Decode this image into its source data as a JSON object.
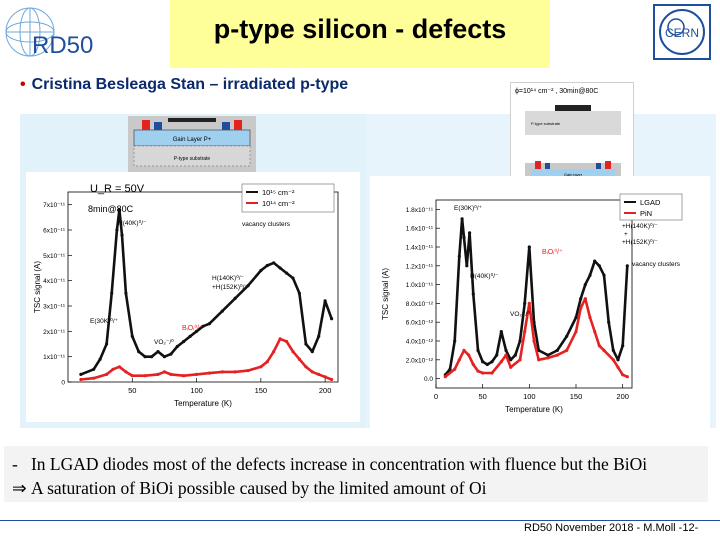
{
  "slide": {
    "title": "p-type silicon - defects",
    "logo_left_text": "RD50",
    "logo_right_text": "CERN",
    "headline": "Cristina Besleaga  Stan – irradiated p-type",
    "bullet_1_dash": "-",
    "bullet_1": "In LGAD diodes most of the defects increase in concentration with fluence but the BiOi",
    "bullet_2_arrow": "⇒",
    "bullet_2": "A saturation of BiOi possible caused by the limited amount of Oi",
    "footer": "RD50 November 2018 - M.Moll -12-"
  },
  "colors": {
    "black_series": "#111111",
    "red_series": "#e52222",
    "title_bg": "#ffff99",
    "accent_blue": "#1f4e9c",
    "bullet_red": "#cc0000"
  },
  "left_device": {
    "gain_layer": "Gain Layer P+",
    "substrate": "P-type substrate"
  },
  "right_inset": {
    "caption": "ϕ=10¹⁴ cm⁻² , 30min@80C",
    "label_1": "P-type substrate",
    "label_2": "Gain layer"
  },
  "chart_data": [
    {
      "type": "line",
      "xlabel": "Temperature (K)",
      "ylabel": "TSC signal (A)",
      "xlim": [
        0,
        210
      ],
      "ylim": [
        0,
        7.5e-11
      ],
      "xticks": [
        "50",
        "100",
        "150",
        "200"
      ],
      "xtick_values": [
        50,
        100,
        150,
        200
      ],
      "yticks": [
        "0",
        "1x10⁻¹¹",
        "2x10⁻¹¹",
        "3x10⁻¹¹",
        "4x10⁻¹¹",
        "5x10⁻¹¹",
        "6x10⁻¹¹",
        "7x10⁻¹¹"
      ],
      "ytick_values": [
        0,
        1e-11,
        2e-11,
        3e-11,
        4e-11,
        5e-11,
        6e-11,
        7e-11
      ],
      "legend": [
        "10¹⁵ cm⁻²",
        "10¹⁴ cm⁻²"
      ],
      "legend_position": "top-right",
      "conditions": [
        "U_R = 50V",
        "8min@80C"
      ],
      "annotations": [
        "H(40K)⁰/⁻",
        "vacancy clusters",
        "H(140K)⁰/⁻",
        "+H(152K)⁰/⁻",
        "E(30K)⁰/⁺",
        "VO₂⁻/⁰",
        "BᵢOᵢ⁰/⁺"
      ],
      "series": [
        {
          "name": "10¹⁵ cm⁻²",
          "color": "#111111",
          "x": [
            10,
            20,
            25,
            30,
            34,
            38,
            40,
            42,
            45,
            50,
            55,
            60,
            65,
            70,
            75,
            80,
            85,
            90,
            95,
            100,
            105,
            110,
            120,
            130,
            140,
            150,
            155,
            160,
            165,
            170,
            175,
            180,
            185,
            190,
            195,
            200,
            205
          ],
          "y": [
            3e-12,
            5e-12,
            9e-12,
            1.5e-11,
            3.5e-11,
            6e-11,
            6.8e-11,
            5.8e-11,
            3.5e-11,
            1.8e-11,
            1.2e-11,
            1e-11,
            1e-11,
            1.2e-11,
            1e-11,
            1.1e-11,
            1.4e-11,
            1.6e-11,
            1.8e-11,
            2e-11,
            2.2e-11,
            2.3e-11,
            2.8e-11,
            3.3e-11,
            3.8e-11,
            4.4e-11,
            4.6e-11,
            4.7e-11,
            4.5e-11,
            4.3e-11,
            4.1e-11,
            3.5e-11,
            1.5e-11,
            1.2e-11,
            1.8e-11,
            3.2e-11,
            2.5e-11
          ]
        },
        {
          "name": "10¹⁴ cm⁻²",
          "color": "#e52222",
          "x": [
            10,
            20,
            30,
            35,
            40,
            45,
            50,
            60,
            70,
            75,
            80,
            90,
            100,
            110,
            120,
            130,
            140,
            150,
            155,
            160,
            165,
            170,
            175,
            180,
            185,
            190,
            195,
            200,
            205
          ],
          "y": [
            1e-12,
            1.5e-12,
            3e-12,
            5e-12,
            6e-12,
            4e-12,
            2.5e-12,
            2.5e-12,
            3e-12,
            4e-12,
            3e-12,
            2.5e-12,
            3e-12,
            3.5e-12,
            4e-12,
            4e-12,
            4.5e-12,
            6e-12,
            8e-12,
            1.2e-11,
            1.7e-11,
            1.6e-11,
            1.2e-11,
            9e-12,
            6e-12,
            4e-12,
            3e-12,
            2e-12,
            1e-12
          ]
        }
      ]
    },
    {
      "type": "line",
      "xlabel": "Temperature (K)",
      "ylabel": "TSC signal (A)",
      "xlim": [
        0,
        210
      ],
      "ylim": [
        -1e-12,
        1.9e-11
      ],
      "xticks": [
        "0",
        "50",
        "100",
        "150",
        "200"
      ],
      "xtick_values": [
        0,
        50,
        100,
        150,
        200
      ],
      "yticks": [
        "0.0",
        "2.0x10⁻¹²",
        "4.0x10⁻¹²",
        "6.0x10⁻¹²",
        "8.0x10⁻¹²",
        "1.0x10⁻¹¹",
        "1.2x10⁻¹¹",
        "1.4x10⁻¹¹",
        "1.6x10⁻¹¹",
        "1.8x10⁻¹¹"
      ],
      "ytick_values": [
        0,
        2e-12,
        4e-12,
        6e-12,
        8e-12,
        1e-11,
        1.2e-11,
        1.4e-11,
        1.6e-11,
        1.8e-11
      ],
      "legend": [
        "LGAD",
        "PiN"
      ],
      "legend_position": "top-right",
      "annotations": [
        "E(30K)⁰/⁺",
        "H(40K)⁰/⁻",
        "BᵢOᵢ⁰/⁺",
        "VO₂⁻/⁰",
        "+H(140K)⁰/⁻",
        "+",
        "+H(152K)⁰/⁻",
        "vacancy clusters"
      ],
      "series": [
        {
          "name": "LGAD",
          "color": "#111111",
          "x": [
            10,
            15,
            20,
            25,
            28,
            30,
            33,
            36,
            40,
            45,
            50,
            55,
            60,
            65,
            70,
            75,
            80,
            85,
            90,
            95,
            100,
            105,
            110,
            120,
            130,
            140,
            150,
            155,
            160,
            165,
            170,
            175,
            180,
            185,
            190,
            195,
            200,
            205
          ],
          "y": [
            4e-13,
            1e-12,
            4e-12,
            1.3e-11,
            1.7e-11,
            1.5e-11,
            1.2e-11,
            1.55e-11,
            9e-12,
            3e-12,
            1.8e-12,
            1.5e-12,
            1.8e-12,
            2.5e-12,
            5e-12,
            3e-12,
            2e-12,
            2.5e-12,
            4e-12,
            8e-12,
            1.4e-11,
            6e-12,
            3e-12,
            2.5e-12,
            3e-12,
            4.5e-12,
            6.5e-12,
            8.5e-12,
            1e-11,
            1.1e-11,
            1.25e-11,
            1.2e-11,
            1.1e-11,
            6e-12,
            3e-12,
            2e-12,
            3.5e-12,
            1.2e-11
          ]
        },
        {
          "name": "PiN",
          "color": "#e52222",
          "x": [
            10,
            20,
            25,
            30,
            35,
            40,
            45,
            50,
            60,
            70,
            75,
            80,
            90,
            95,
            100,
            105,
            110,
            120,
            130,
            140,
            150,
            155,
            160,
            165,
            170,
            175,
            180,
            190,
            195,
            200,
            205
          ],
          "y": [
            2e-13,
            1e-12,
            2e-12,
            3e-12,
            2.5e-12,
            1.5e-12,
            8e-13,
            6e-13,
            6e-13,
            1.8e-12,
            2.5e-12,
            1.2e-12,
            2e-12,
            5e-12,
            8e-12,
            4e-12,
            2e-12,
            2.2e-12,
            2.5e-12,
            3e-12,
            5e-12,
            7.5e-12,
            8.5e-12,
            6.5e-12,
            5e-12,
            3.5e-12,
            3e-12,
            2e-12,
            1.2e-12,
            4e-13,
            2e-13
          ]
        }
      ]
    }
  ]
}
